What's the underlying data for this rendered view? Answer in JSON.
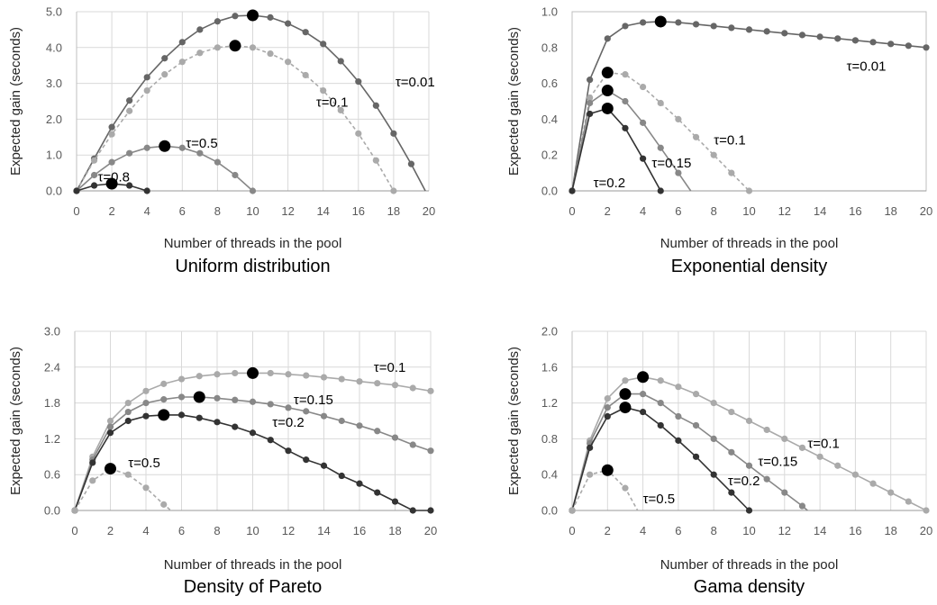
{
  "chart_data": [
    {
      "type": "line",
      "title": "Uniform distribution",
      "xlabel": "Number of threads in the pool",
      "ylabel": "Expected gain (seconds)",
      "xlim": [
        0,
        20
      ],
      "ylim": [
        0,
        5
      ],
      "xticks": [
        "0",
        "2",
        "4",
        "6",
        "8",
        "10",
        "12",
        "14",
        "16",
        "18",
        "20"
      ],
      "yticks": [
        "0.0",
        "1.0",
        "2.0",
        "3.0",
        "4.0",
        "5.0"
      ],
      "grid": true,
      "legend": "inline labels",
      "series": [
        {
          "name": "τ=0.01",
          "color": "#666666",
          "dashed": false,
          "x": [
            0,
            1,
            2,
            3,
            4,
            5,
            6,
            7,
            8,
            9,
            10,
            11,
            12,
            13,
            14,
            15,
            16,
            17,
            18,
            19,
            19.8
          ],
          "y": [
            0,
            0.9,
            1.78,
            2.52,
            3.17,
            3.7,
            4.15,
            4.5,
            4.73,
            4.88,
            4.9,
            4.84,
            4.67,
            4.43,
            4.1,
            3.62,
            3.05,
            2.38,
            1.6,
            0.75,
            0
          ],
          "optimum": [
            10,
            4.9
          ],
          "label": "τ=0.01",
          "label_at": [
            18.1,
            2.92
          ]
        },
        {
          "name": "τ=0.1",
          "color": "#aaaaaa",
          "dashed": true,
          "x": [
            0,
            1,
            2,
            3,
            4,
            5,
            6,
            7,
            8,
            9,
            10,
            11,
            12,
            13,
            14,
            15,
            16,
            17,
            18
          ],
          "y": [
            0,
            0.85,
            1.58,
            2.23,
            2.8,
            3.25,
            3.6,
            3.85,
            4.0,
            4.05,
            4.0,
            3.83,
            3.6,
            3.23,
            2.8,
            2.25,
            1.6,
            0.85,
            0
          ],
          "optimum": [
            9,
            4.05
          ],
          "label": "τ=0.1",
          "label_at": [
            13.6,
            2.35
          ]
        },
        {
          "name": "τ=0.5",
          "color": "#888888",
          "dashed": false,
          "x": [
            0,
            1,
            2,
            3,
            4,
            5,
            6,
            7,
            8,
            9,
            10
          ],
          "y": [
            0,
            0.44,
            0.8,
            1.05,
            1.2,
            1.25,
            1.2,
            1.05,
            0.8,
            0.44,
            0
          ],
          "optimum": [
            5,
            1.25
          ],
          "label": "τ=0.5",
          "label_at": [
            6.2,
            1.2
          ]
        },
        {
          "name": "τ=0.8",
          "color": "#333333",
          "dashed": false,
          "x": [
            0,
            1,
            2,
            3,
            4
          ],
          "y": [
            0,
            0.15,
            0.2,
            0.15,
            0
          ],
          "optimum": [
            2,
            0.2
          ],
          "label": "τ=0.8",
          "label_at": [
            1.2,
            0.26
          ]
        }
      ]
    },
    {
      "type": "line",
      "title": "Exponential density",
      "xlabel": "Number of threads in the pool",
      "ylabel": "Expected gain (seconds)",
      "xlim": [
        0,
        20
      ],
      "ylim": [
        0,
        1
      ],
      "xticks": [
        "0",
        "2",
        "4",
        "6",
        "8",
        "10",
        "12",
        "14",
        "16",
        "18",
        "20"
      ],
      "yticks": [
        "0.0",
        "0.2",
        "0.4",
        "0.6",
        "0.8",
        "1.0"
      ],
      "grid": false,
      "legend": "inline labels",
      "series": [
        {
          "name": "τ=0.01",
          "color": "#666666",
          "dashed": false,
          "x": [
            0,
            1,
            2,
            3,
            4,
            5,
            6,
            7,
            8,
            9,
            10,
            11,
            12,
            13,
            14,
            15,
            16,
            17,
            18,
            19,
            20
          ],
          "y": [
            0,
            0.62,
            0.85,
            0.92,
            0.94,
            0.945,
            0.94,
            0.93,
            0.92,
            0.91,
            0.9,
            0.89,
            0.88,
            0.87,
            0.86,
            0.85,
            0.84,
            0.83,
            0.82,
            0.81,
            0.8
          ],
          "optimum": [
            5,
            0.945
          ],
          "label": "τ=0.01",
          "label_at": [
            15.5,
            0.67
          ]
        },
        {
          "name": "τ=0.1",
          "color": "#aaaaaa",
          "dashed": true,
          "x": [
            0,
            1,
            2,
            3,
            4,
            5,
            6,
            7,
            8,
            9,
            10
          ],
          "y": [
            0,
            0.52,
            0.66,
            0.65,
            0.58,
            0.49,
            0.4,
            0.3,
            0.2,
            0.1,
            0
          ],
          "optimum": [
            2,
            0.66
          ],
          "label": "τ=0.1",
          "label_at": [
            8.0,
            0.26
          ]
        },
        {
          "name": "τ=0.15",
          "color": "#888888",
          "dashed": false,
          "x": [
            0,
            1,
            2,
            3,
            4,
            5,
            6,
            6.7
          ],
          "y": [
            0,
            0.49,
            0.56,
            0.5,
            0.38,
            0.24,
            0.1,
            0
          ],
          "optimum": [
            2,
            0.56
          ],
          "label": "τ=0.15",
          "label_at": [
            4.5,
            0.13
          ]
        },
        {
          "name": "τ=0.2",
          "color": "#333333",
          "dashed": false,
          "x": [
            0,
            1,
            2,
            3,
            4,
            5
          ],
          "y": [
            0,
            0.43,
            0.46,
            0.35,
            0.18,
            0
          ],
          "optimum": [
            2,
            0.46
          ],
          "label": "τ=0.2",
          "label_at": [
            1.2,
            0.02
          ]
        }
      ]
    },
    {
      "type": "line",
      "title": "Density of Pareto",
      "xlabel": "Number of threads in the pool",
      "ylabel": "Expected gain (seconds)",
      "xlim": [
        0,
        20
      ],
      "ylim": [
        0,
        3
      ],
      "xticks": [
        "0",
        "2",
        "4",
        "6",
        "8",
        "10",
        "12",
        "14",
        "16",
        "18",
        "20"
      ],
      "yticks": [
        "0.0",
        "0.6",
        "1.2",
        "1.8",
        "2.4",
        "3.0"
      ],
      "grid": true,
      "legend": "inline labels",
      "series": [
        {
          "name": "τ=0.1",
          "color": "#aaaaaa",
          "dashed": false,
          "x": [
            0,
            1,
            2,
            3,
            4,
            5,
            6,
            7,
            8,
            9,
            10,
            11,
            12,
            13,
            14,
            15,
            16,
            17,
            18,
            19,
            20
          ],
          "y": [
            0,
            0.9,
            1.5,
            1.8,
            2.0,
            2.12,
            2.2,
            2.25,
            2.28,
            2.3,
            2.3,
            2.3,
            2.28,
            2.26,
            2.23,
            2.2,
            2.16,
            2.13,
            2.1,
            2.05,
            2.0
          ],
          "optimum": [
            10,
            2.3
          ],
          "label": "τ=0.1",
          "label_at": [
            16.8,
            2.32
          ]
        },
        {
          "name": "τ=0.15",
          "color": "#888888",
          "dashed": false,
          "x": [
            0,
            1,
            2,
            3,
            4,
            5,
            6,
            7,
            8,
            9,
            10,
            11,
            12,
            13,
            14,
            15,
            16,
            17,
            18,
            19,
            20
          ],
          "y": [
            0,
            0.85,
            1.4,
            1.65,
            1.8,
            1.86,
            1.9,
            1.9,
            1.88,
            1.85,
            1.82,
            1.78,
            1.72,
            1.66,
            1.58,
            1.5,
            1.42,
            1.33,
            1.22,
            1.1,
            1.0
          ],
          "optimum": [
            7,
            1.9
          ],
          "label": "τ=0.15",
          "label_at": [
            12.3,
            1.78
          ]
        },
        {
          "name": "τ=0.2",
          "color": "#333333",
          "dashed": false,
          "x": [
            0,
            1,
            2,
            3,
            4,
            5,
            6,
            7,
            8,
            9,
            10,
            11,
            12,
            13,
            14,
            15,
            16,
            17,
            18,
            19,
            20
          ],
          "y": [
            0,
            0.8,
            1.3,
            1.5,
            1.58,
            1.6,
            1.6,
            1.55,
            1.48,
            1.4,
            1.3,
            1.18,
            1.0,
            0.85,
            0.75,
            0.58,
            0.45,
            0.3,
            0.15,
            0.0,
            0.0
          ],
          "optimum": [
            5,
            1.6
          ],
          "label": "τ=0.2",
          "label_at": [
            11.1,
            1.4
          ]
        },
        {
          "name": "τ=0.5",
          "color": "#aaaaaa",
          "dashed": true,
          "x": [
            0,
            1,
            2,
            3,
            4,
            5,
            5.4
          ],
          "y": [
            0,
            0.5,
            0.7,
            0.6,
            0.38,
            0.1,
            0
          ],
          "optimum": [
            2,
            0.7
          ],
          "label": "τ=0.5",
          "label_at": [
            3.0,
            0.72
          ]
        }
      ]
    },
    {
      "type": "line",
      "title": "Gama density",
      "xlabel": "Number of threads in the pool",
      "ylabel": "Expected gain (seconds)",
      "xlim": [
        0,
        20
      ],
      "ylim": [
        0,
        2
      ],
      "xticks": [
        "0",
        "2",
        "4",
        "6",
        "8",
        "10",
        "12",
        "14",
        "16",
        "18",
        "20"
      ],
      "yticks": [
        "0.0",
        "0.4",
        "0.8",
        "1.2",
        "1.6",
        "2.0"
      ],
      "grid": true,
      "legend": "inline labels",
      "series": [
        {
          "name": "τ=0.1",
          "color": "#aaaaaa",
          "dashed": false,
          "x": [
            0,
            1,
            2,
            3,
            4,
            5,
            6,
            7,
            8,
            9,
            10,
            11,
            12,
            13,
            14,
            15,
            16,
            17,
            18,
            19,
            20
          ],
          "y": [
            0,
            0.78,
            1.25,
            1.45,
            1.49,
            1.45,
            1.38,
            1.3,
            1.2,
            1.1,
            1.0,
            0.9,
            0.8,
            0.7,
            0.6,
            0.5,
            0.4,
            0.3,
            0.2,
            0.1,
            0.0
          ],
          "optimum": [
            4,
            1.49
          ],
          "label": "τ=0.1",
          "label_at": [
            13.3,
            0.7
          ]
        },
        {
          "name": "τ=0.15",
          "color": "#888888",
          "dashed": false,
          "x": [
            0,
            1,
            2,
            3,
            4,
            5,
            6,
            7,
            8,
            9,
            10,
            11,
            12,
            13,
            13.3
          ],
          "y": [
            0,
            0.75,
            1.15,
            1.3,
            1.3,
            1.2,
            1.05,
            0.95,
            0.8,
            0.65,
            0.5,
            0.35,
            0.2,
            0.05,
            0
          ],
          "optimum": [
            3,
            1.3
          ],
          "label": "τ=0.15",
          "label_at": [
            10.5,
            0.5
          ]
        },
        {
          "name": "τ=0.2",
          "color": "#333333",
          "dashed": false,
          "x": [
            0,
            1,
            2,
            3,
            4,
            5,
            6,
            7,
            8,
            9,
            10
          ],
          "y": [
            0,
            0.7,
            1.05,
            1.15,
            1.1,
            0.95,
            0.78,
            0.6,
            0.4,
            0.2,
            0
          ],
          "optimum": [
            3,
            1.15
          ],
          "label": "τ=0.2",
          "label_at": [
            8.8,
            0.28
          ]
        },
        {
          "name": "τ=0.5",
          "color": "#aaaaaa",
          "dashed": true,
          "x": [
            0,
            1,
            2,
            3,
            3.7
          ],
          "y": [
            0,
            0.4,
            0.45,
            0.25,
            0
          ],
          "optimum": [
            2,
            0.45
          ],
          "label": "τ=0.5",
          "label_at": [
            4.0,
            0.08
          ]
        }
      ]
    }
  ]
}
